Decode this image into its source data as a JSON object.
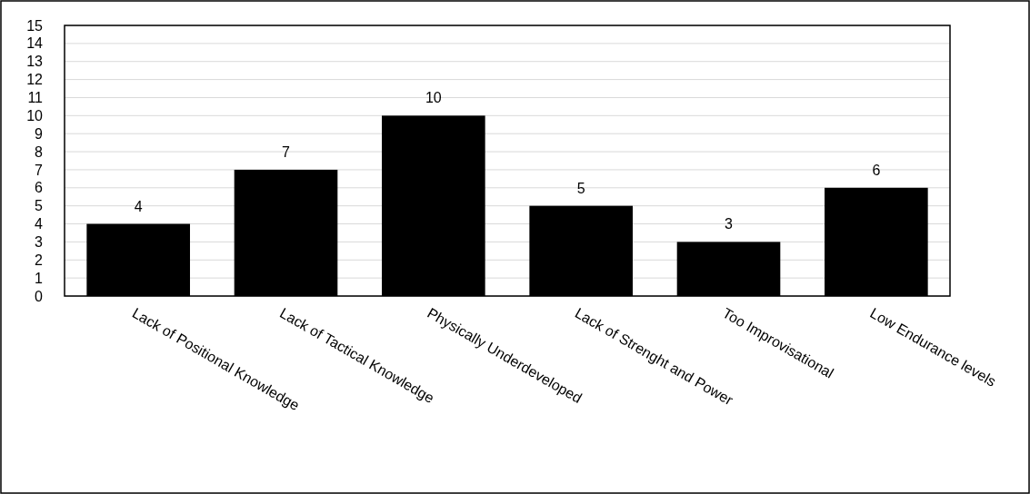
{
  "chart_data": {
    "type": "bar",
    "categories": [
      "Lack of Positional Knowledge",
      "Lack of Tactical Knowledge",
      "Physically Underdeveloped",
      "Lack of Strenght and Power",
      "Too Improvisational",
      "Low Endurance levels"
    ],
    "values": [
      4,
      7,
      10,
      5,
      3,
      6
    ],
    "color": "#000000",
    "ylim": [
      0,
      15
    ],
    "yticks": [
      0,
      1,
      2,
      3,
      4,
      5,
      6,
      7,
      8,
      9,
      10,
      11,
      12,
      13,
      14,
      15
    ],
    "grid": "y",
    "data_labels": true
  }
}
